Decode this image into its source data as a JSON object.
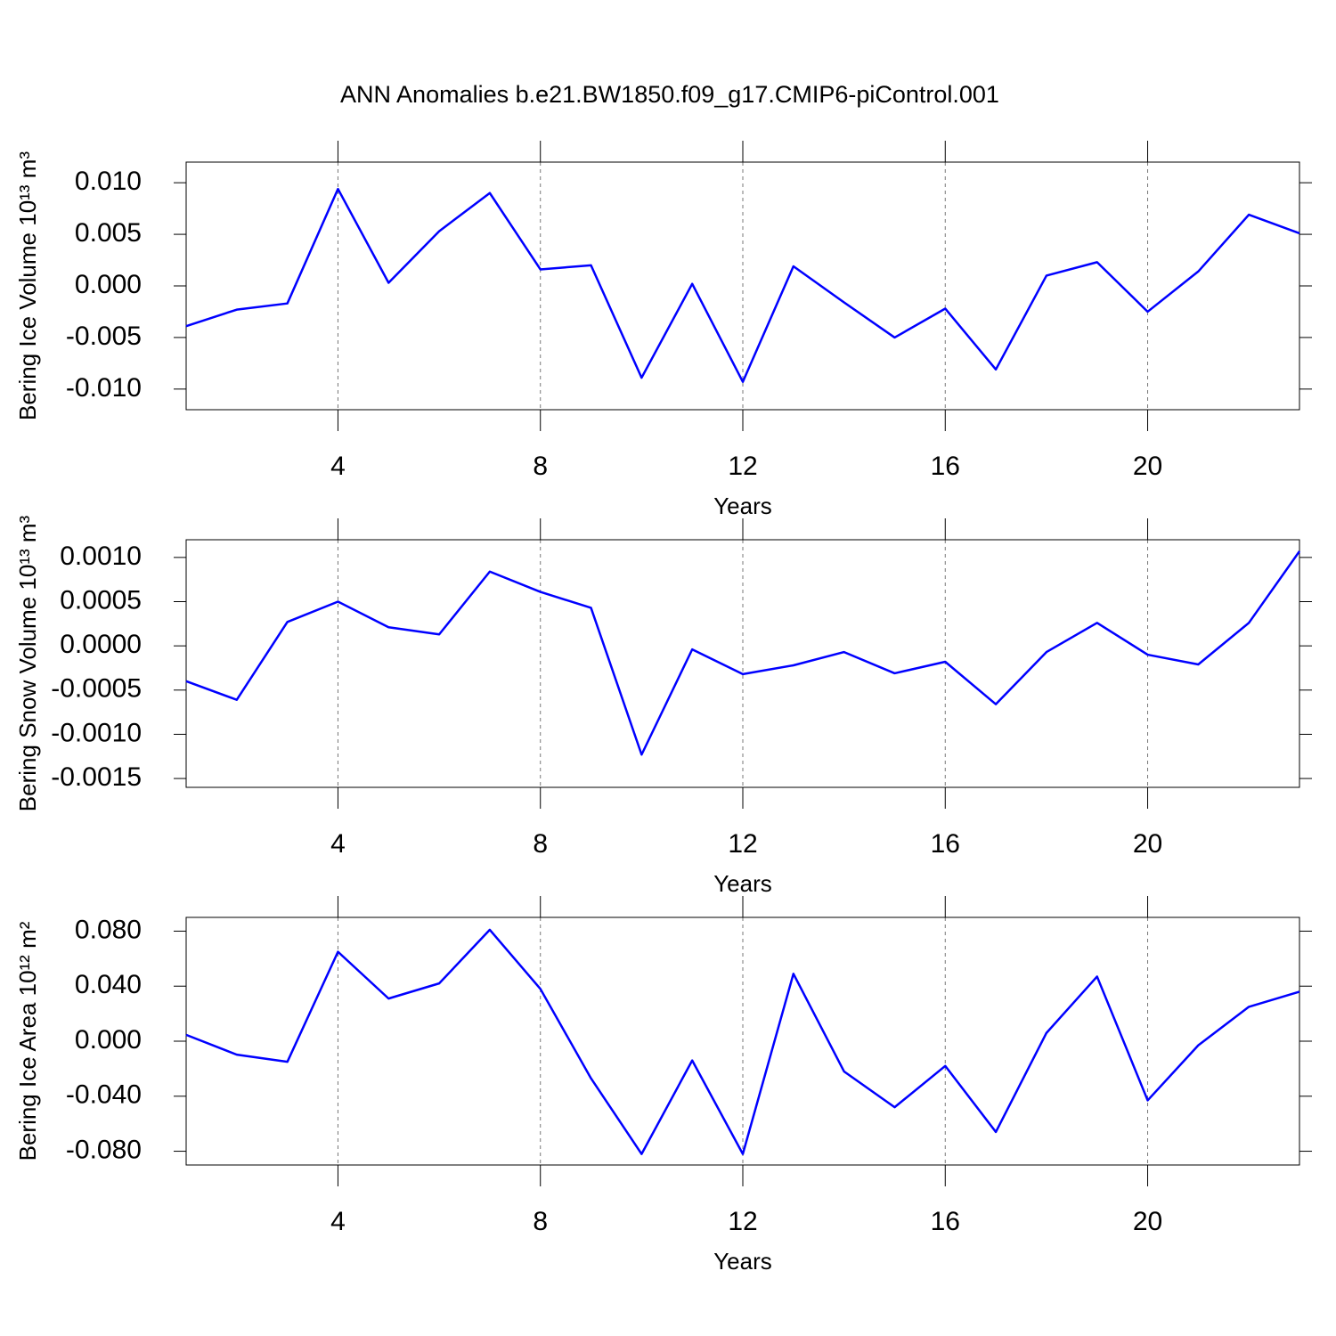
{
  "title": "ANN Anomalies b.e21.BW1850.f09_g17.CMIP6-piControl.001",
  "chart_data": [
    {
      "type": "line",
      "ylabel": "Bering Ice Volume 10¹³ m³",
      "xlabel": "Years",
      "x": [
        1,
        2,
        3,
        4,
        5,
        6,
        7,
        8,
        9,
        10,
        11,
        12,
        13,
        14,
        15,
        16,
        17,
        18,
        19,
        20,
        21,
        22,
        23
      ],
      "series": [
        {
          "color": "#0000ff",
          "values": [
            -0.0039,
            -0.0023,
            -0.0017,
            0.0094,
            0.0003,
            0.0053,
            0.009,
            0.0016,
            0.002,
            -0.0089,
            0.0002,
            -0.0093,
            0.0019,
            -0.0016,
            -0.005,
            -0.0022,
            -0.0081,
            0.001,
            0.0023,
            -0.0025,
            0.0014,
            0.0069,
            0.0051
          ]
        }
      ],
      "xlim": [
        1,
        23
      ],
      "xticks": [
        4,
        8,
        12,
        16,
        20
      ],
      "ylim": [
        -0.012,
        0.012
      ],
      "yticks": [
        {
          "value": 0.01,
          "label": "0.010"
        },
        {
          "value": 0.005,
          "label": "0.005"
        },
        {
          "value": 0,
          "label": "0.000"
        },
        {
          "value": -0.005,
          "label": "-0.005"
        },
        {
          "value": -0.01,
          "label": "-0.010"
        }
      ],
      "grid": "x"
    },
    {
      "type": "line",
      "ylabel": "Bering Snow Volume 10¹³ m³",
      "xlabel": "Years",
      "x": [
        1,
        2,
        3,
        4,
        5,
        6,
        7,
        8,
        9,
        10,
        11,
        12,
        13,
        14,
        15,
        16,
        17,
        18,
        19,
        20,
        21,
        22,
        23
      ],
      "series": [
        {
          "color": "#0000ff",
          "values": [
            -0.0004,
            -0.00061,
            0.00027,
            0.0005,
            0.00021,
            0.00013,
            0.00084,
            0.00061,
            0.00043,
            -0.00123,
            -4e-05,
            -0.00032,
            -0.00022,
            -7e-05,
            -0.00031,
            -0.00018,
            -0.00066,
            -7e-05,
            0.00026,
            -0.0001,
            -0.00021,
            0.00026,
            0.00107
          ]
        }
      ],
      "xlim": [
        1,
        23
      ],
      "xticks": [
        4,
        8,
        12,
        16,
        20
      ],
      "ylim": [
        -0.0016,
        0.0012
      ],
      "yticks": [
        {
          "value": 0.001,
          "label": "0.0010"
        },
        {
          "value": 0.0005,
          "label": "0.0005"
        },
        {
          "value": 0,
          "label": "0.0000"
        },
        {
          "value": -0.0005,
          "label": "-0.0005"
        },
        {
          "value": -0.001,
          "label": "-0.0010"
        },
        {
          "value": -0.0015,
          "label": "-0.0015"
        }
      ],
      "grid": "x"
    },
    {
      "type": "line",
      "ylabel": "Bering Ice Area 10¹² m²",
      "xlabel": "Years",
      "x": [
        1,
        2,
        3,
        4,
        5,
        6,
        7,
        8,
        9,
        10,
        11,
        12,
        13,
        14,
        15,
        16,
        17,
        18,
        19,
        20,
        21,
        22,
        23
      ],
      "series": [
        {
          "color": "#0000ff",
          "values": [
            0.0046,
            -0.0098,
            -0.015,
            0.065,
            0.031,
            0.042,
            0.081,
            0.038,
            -0.027,
            -0.082,
            -0.014,
            -0.082,
            0.049,
            -0.022,
            -0.048,
            -0.018,
            -0.066,
            0.006,
            0.047,
            -0.043,
            -0.003,
            0.025,
            0.036
          ]
        }
      ],
      "xlim": [
        1,
        23
      ],
      "xticks": [
        4,
        8,
        12,
        16,
        20
      ],
      "ylim": [
        -0.09,
        0.09
      ],
      "yticks": [
        {
          "value": 0.08,
          "label": "0.080"
        },
        {
          "value": 0.04,
          "label": "0.040"
        },
        {
          "value": 0,
          "label": "0.000"
        },
        {
          "value": -0.04,
          "label": "-0.040"
        },
        {
          "value": -0.08,
          "label": "-0.080"
        }
      ],
      "grid": "x"
    }
  ]
}
